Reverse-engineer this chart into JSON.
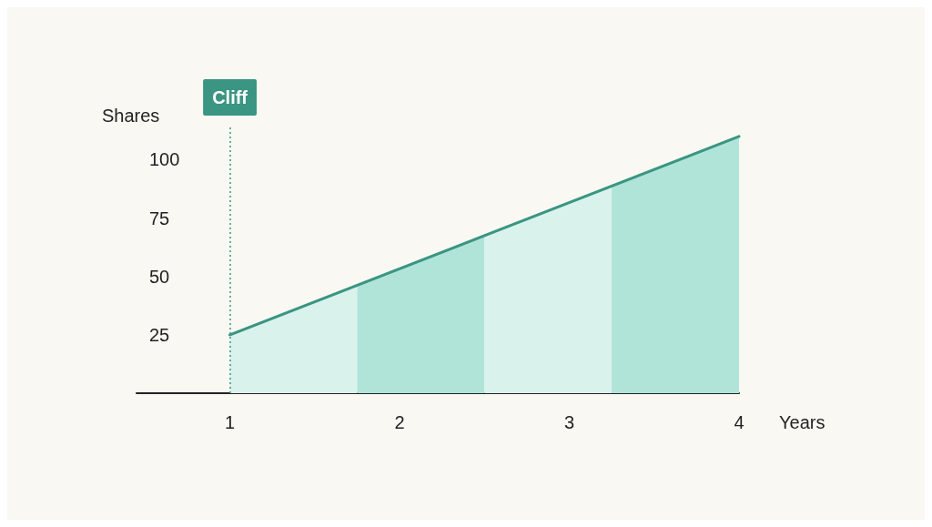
{
  "chart_data": {
    "type": "area",
    "xlabel": "Years",
    "ylabel": "Shares",
    "xlim": [
      0.45,
      4
    ],
    "xticks": [
      1,
      2,
      3,
      4
    ],
    "ylim": [
      0,
      115
    ],
    "yticks": [
      25,
      50,
      75,
      100
    ],
    "series": [
      {
        "color": "#d9f2ec",
        "x": [
          1,
          1.75
        ],
        "values": [
          25,
          46
        ]
      },
      {
        "color": "#b0e4d9",
        "x": [
          1.75,
          2.5
        ],
        "values": [
          46,
          68
        ]
      },
      {
        "color": "#d9f2ec",
        "x": [
          2.5,
          3.25
        ],
        "values": [
          68,
          89
        ]
      },
      {
        "color": "#b0e4d9",
        "x": [
          3.25,
          4
        ],
        "values": [
          89,
          110
        ]
      },
      {
        "type": "line",
        "color": "#3a9582",
        "x": [
          1,
          4
        ],
        "values": [
          25,
          110
        ]
      }
    ],
    "ref_lines": [
      {
        "axis": "x",
        "value": 1,
        "label": "Cliff",
        "color": "#3a9582",
        "line_style": "dotted"
      }
    ],
    "grid": false
  }
}
